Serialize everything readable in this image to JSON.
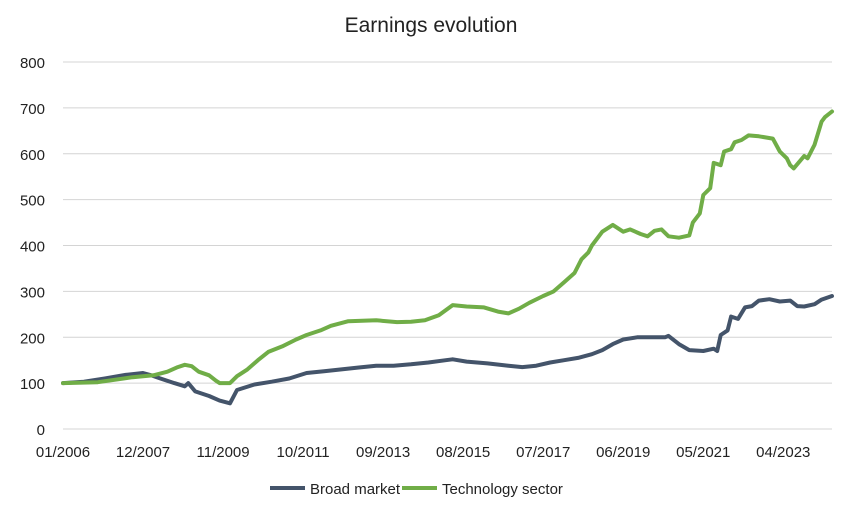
{
  "chart_data": {
    "type": "line",
    "title": "Earnings evolution",
    "xlabel": "",
    "ylabel": "",
    "x_unit": "months since 01/2006",
    "xlim": [
      0,
      221
    ],
    "ylim": [
      0,
      800
    ],
    "yticks": [
      0,
      100,
      200,
      300,
      400,
      500,
      600,
      700,
      800
    ],
    "xticks": [
      {
        "month": 0,
        "label": "01/2006"
      },
      {
        "month": 23,
        "label": "12/2007"
      },
      {
        "month": 46,
        "label": "11/2009"
      },
      {
        "month": 69,
        "label": "10/2011"
      },
      {
        "month": 92,
        "label": "09/2013"
      },
      {
        "month": 115,
        "label": "08/2015"
      },
      {
        "month": 138,
        "label": "07/2017"
      },
      {
        "month": 161,
        "label": "06/2019"
      },
      {
        "month": 184,
        "label": "05/2021"
      },
      {
        "month": 207,
        "label": "04/2023"
      }
    ],
    "grid": true,
    "legend_position": "bottom",
    "series": [
      {
        "name": "Broad market",
        "color": "#44546A",
        "points": [
          [
            0,
            100
          ],
          [
            6,
            103
          ],
          [
            12,
            110
          ],
          [
            18,
            118
          ],
          [
            23,
            122
          ],
          [
            25,
            118
          ],
          [
            28,
            110
          ],
          [
            32,
            100
          ],
          [
            35,
            93
          ],
          [
            36,
            100
          ],
          [
            38,
            82
          ],
          [
            42,
            72
          ],
          [
            45,
            62
          ],
          [
            48,
            56
          ],
          [
            50,
            85
          ],
          [
            55,
            97
          ],
          [
            60,
            103
          ],
          [
            65,
            110
          ],
          [
            70,
            122
          ],
          [
            75,
            126
          ],
          [
            80,
            130
          ],
          [
            85,
            134
          ],
          [
            90,
            138
          ],
          [
            95,
            138
          ],
          [
            100,
            141
          ],
          [
            105,
            145
          ],
          [
            110,
            150
          ],
          [
            112,
            152
          ],
          [
            116,
            147
          ],
          [
            122,
            143
          ],
          [
            128,
            138
          ],
          [
            132,
            135
          ],
          [
            136,
            138
          ],
          [
            140,
            145
          ],
          [
            144,
            150
          ],
          [
            148,
            155
          ],
          [
            152,
            163
          ],
          [
            155,
            172
          ],
          [
            158,
            185
          ],
          [
            161,
            195
          ],
          [
            165,
            200
          ],
          [
            170,
            200
          ],
          [
            173,
            200
          ],
          [
            174,
            203
          ],
          [
            177,
            185
          ],
          [
            180,
            172
          ],
          [
            184,
            170
          ],
          [
            187,
            175
          ],
          [
            188,
            170
          ],
          [
            189,
            205
          ],
          [
            191,
            215
          ],
          [
            192,
            245
          ],
          [
            194,
            240
          ],
          [
            196,
            265
          ],
          [
            198,
            268
          ],
          [
            200,
            280
          ],
          [
            203,
            283
          ],
          [
            206,
            278
          ],
          [
            209,
            280
          ],
          [
            211,
            268
          ],
          [
            213,
            267
          ],
          [
            216,
            272
          ],
          [
            218,
            282
          ],
          [
            221,
            290
          ]
        ]
      },
      {
        "name": "Technology sector",
        "color": "#70AD47",
        "points": [
          [
            0,
            100
          ],
          [
            10,
            102
          ],
          [
            20,
            113
          ],
          [
            26,
            117
          ],
          [
            30,
            125
          ],
          [
            33,
            135
          ],
          [
            35,
            140
          ],
          [
            37,
            137
          ],
          [
            39,
            125
          ],
          [
            42,
            117
          ],
          [
            44,
            105
          ],
          [
            45,
            100
          ],
          [
            48,
            100
          ],
          [
            50,
            115
          ],
          [
            53,
            130
          ],
          [
            56,
            150
          ],
          [
            59,
            168
          ],
          [
            63,
            180
          ],
          [
            67,
            195
          ],
          [
            70,
            205
          ],
          [
            74,
            215
          ],
          [
            77,
            225
          ],
          [
            82,
            235
          ],
          [
            90,
            237
          ],
          [
            96,
            233
          ],
          [
            100,
            234
          ],
          [
            104,
            237
          ],
          [
            108,
            248
          ],
          [
            112,
            270
          ],
          [
            116,
            267
          ],
          [
            121,
            265
          ],
          [
            125,
            256
          ],
          [
            128,
            252
          ],
          [
            131,
            262
          ],
          [
            134,
            275
          ],
          [
            138,
            290
          ],
          [
            141,
            300
          ],
          [
            144,
            320
          ],
          [
            147,
            340
          ],
          [
            149,
            370
          ],
          [
            151,
            385
          ],
          [
            152,
            400
          ],
          [
            155,
            430
          ],
          [
            158,
            445
          ],
          [
            161,
            430
          ],
          [
            163,
            435
          ],
          [
            166,
            425
          ],
          [
            168,
            420
          ],
          [
            170,
            432
          ],
          [
            172,
            435
          ],
          [
            174,
            420
          ],
          [
            177,
            417
          ],
          [
            180,
            422
          ],
          [
            181,
            450
          ],
          [
            183,
            470
          ],
          [
            184,
            510
          ],
          [
            186,
            525
          ],
          [
            187,
            580
          ],
          [
            189,
            575
          ],
          [
            190,
            605
          ],
          [
            192,
            610
          ],
          [
            193,
            625
          ],
          [
            195,
            630
          ],
          [
            197,
            640
          ],
          [
            200,
            638
          ],
          [
            204,
            633
          ],
          [
            206,
            605
          ],
          [
            208,
            590
          ],
          [
            209,
            575
          ],
          [
            210,
            568
          ],
          [
            213,
            595
          ],
          [
            214,
            590
          ],
          [
            216,
            620
          ],
          [
            218,
            670
          ],
          [
            219,
            680
          ],
          [
            221,
            692
          ]
        ]
      }
    ]
  }
}
